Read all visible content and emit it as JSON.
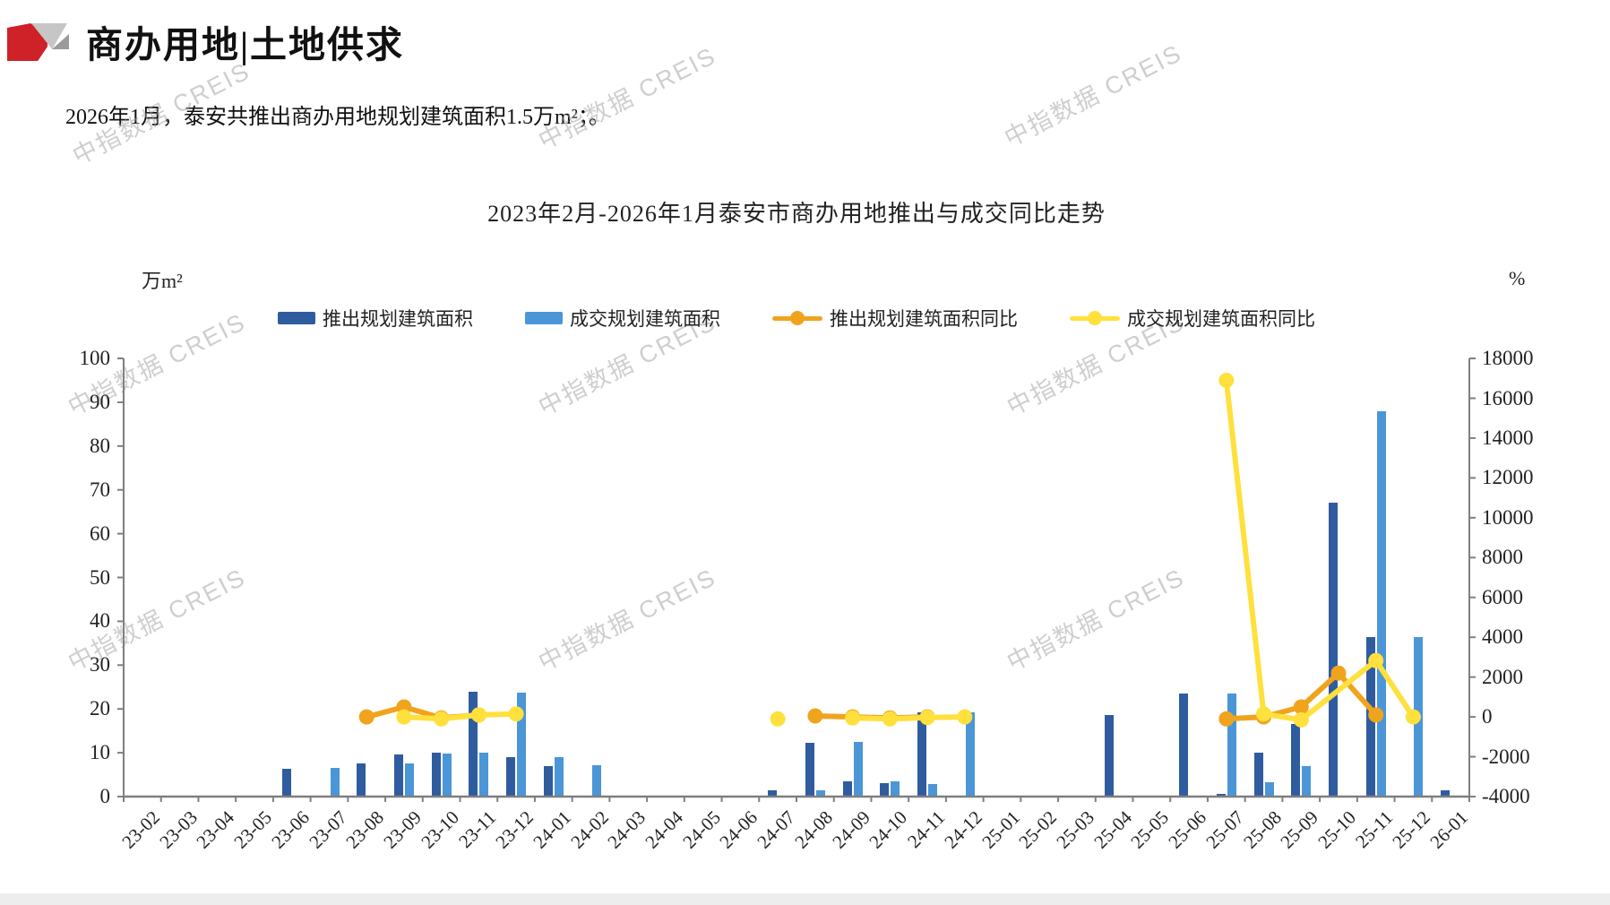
{
  "header": {
    "title": "商办用地|土地供求",
    "subtitle": "2026年1月，泰安共推出商办用地规划建筑面积1.5万m²；。"
  },
  "watermark": {
    "text": "中指数据 CREIS"
  },
  "chart_data": {
    "type": "bar+line",
    "title": "2023年2月-2026年1月泰安市商办用地推出与成交同比走势",
    "grid": false,
    "legend_position": "top",
    "left_axis": {
      "unit": "万m²",
      "min": 0,
      "max": 100,
      "ticks": [
        100,
        90,
        80,
        70,
        60,
        50,
        40,
        30,
        20,
        10,
        0
      ]
    },
    "right_axis": {
      "unit": "%",
      "min": -4000,
      "max": 18000,
      "ticks": [
        18000,
        16000,
        14000,
        12000,
        10000,
        8000,
        6000,
        4000,
        2000,
        0,
        -2000,
        -4000
      ]
    },
    "categories": [
      "23-02",
      "23-03",
      "23-04",
      "23-05",
      "23-06",
      "23-07",
      "23-08",
      "23-09",
      "23-10",
      "23-11",
      "23-12",
      "24-01",
      "24-02",
      "24-03",
      "24-04",
      "24-05",
      "24-06",
      "24-07",
      "24-08",
      "24-09",
      "24-10",
      "24-11",
      "24-12",
      "25-01",
      "25-02",
      "25-03",
      "25-04",
      "25-05",
      "25-06",
      "25-07",
      "25-08",
      "25-09",
      "25-10",
      "25-11",
      "25-12",
      "26-01"
    ],
    "series": [
      {
        "name": "推出规划建筑面积",
        "type": "bar",
        "axis": "left",
        "color": "#2F5C9E",
        "values": [
          0,
          0,
          0,
          0,
          6.3,
          0,
          7.5,
          9.6,
          10,
          24,
          9,
          7,
          0,
          0,
          0,
          0,
          0,
          1.5,
          12.3,
          3.5,
          3,
          19.2,
          0,
          0,
          0,
          0,
          18.6,
          0,
          23.5,
          0.6,
          10,
          16.5,
          67,
          36.5,
          0,
          1.5
        ]
      },
      {
        "name": "成交规划建筑面积",
        "type": "bar",
        "axis": "left",
        "color": "#4B96D6",
        "values": [
          0,
          0,
          0,
          0,
          0,
          6.5,
          0,
          7.5,
          9.8,
          10,
          23.7,
          9,
          7.1,
          0,
          0,
          0,
          0,
          0,
          1.5,
          12.4,
          3.5,
          2.9,
          19.2,
          0,
          0,
          0,
          0,
          0,
          0,
          23.5,
          3.3,
          7,
          0,
          88,
          36.5,
          0
        ]
      },
      {
        "name": "推出规划建筑面积同比",
        "type": "line",
        "axis": "right",
        "color": "#F0A41E",
        "segments": [
          [
            [
              6,
              0
            ],
            [
              7,
              500
            ],
            [
              8,
              -50
            ],
            [
              9,
              100
            ]
          ],
          [
            [
              18,
              50
            ],
            [
              19,
              0
            ],
            [
              20,
              -50
            ],
            [
              21,
              0
            ]
          ],
          [
            [
              29,
              -100
            ],
            [
              30,
              0
            ],
            [
              31,
              500
            ],
            [
              32,
              2200
            ],
            [
              33,
              100
            ]
          ]
        ]
      },
      {
        "name": "成交规划建筑面积同比",
        "type": "line",
        "axis": "right",
        "color": "#FFE03C",
        "segments": [
          [
            [
              7,
              0
            ],
            [
              8,
              -100
            ],
            [
              9,
              100
            ],
            [
              10,
              150
            ]
          ],
          [
            [
              17,
              -100
            ]
          ],
          [
            [
              19,
              -50
            ],
            [
              20,
              -100
            ],
            [
              21,
              -30
            ],
            [
              22,
              0
            ]
          ],
          [
            [
              29,
              16900
            ],
            [
              30,
              150
            ],
            [
              31,
              -150
            ],
            [
              33,
              2830
            ],
            [
              34,
              0
            ]
          ]
        ]
      }
    ]
  }
}
